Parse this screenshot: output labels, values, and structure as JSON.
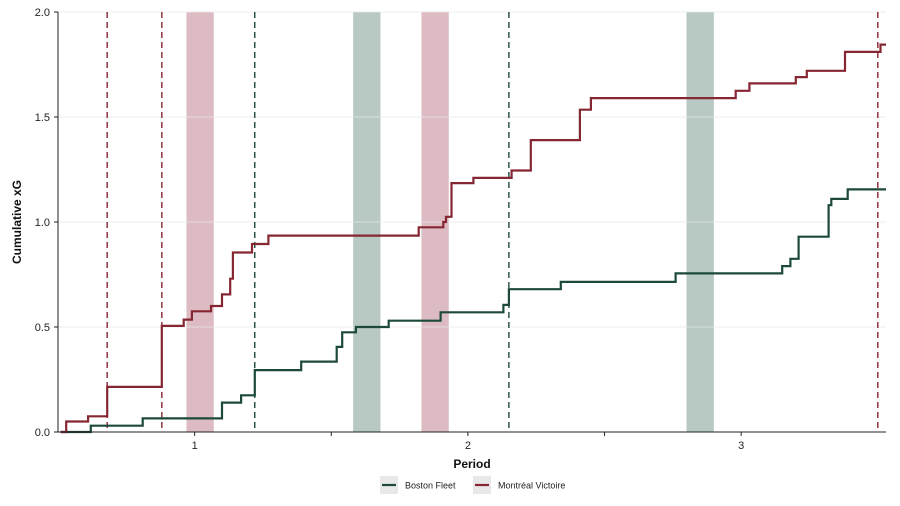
{
  "chart_data": {
    "type": "line",
    "title": "",
    "xlabel": "Period",
    "ylabel": "Cumulative xG",
    "xlim": [
      0.5,
      3.53
    ],
    "ylim": [
      0,
      2.0
    ],
    "x_ticks": [
      1,
      2,
      3
    ],
    "x_minor_ticks": [
      1.5,
      2.5
    ],
    "y_ticks": [
      "0.0",
      "0.5",
      "1.0",
      "1.5",
      "2.0"
    ],
    "grid": "horizontal",
    "legend_position": "bottom-center",
    "colors": {
      "boston": "#1d4a38",
      "montreal": "#862633",
      "boston_band": "#b7c9c2",
      "montreal_band": "#dcbcc2"
    },
    "series": [
      {
        "name": "Boston Fleet",
        "color": "#1d4a38",
        "x": [
          0.51,
          0.62,
          0.62,
          0.81,
          0.81,
          1.1,
          1.1,
          1.17,
          1.17,
          1.22,
          1.22,
          1.39,
          1.39,
          1.52,
          1.52,
          1.54,
          1.54,
          1.59,
          1.59,
          1.71,
          1.71,
          1.9,
          1.9,
          2.13,
          2.13,
          2.15,
          2.15,
          2.34,
          2.34,
          2.76,
          2.76,
          3.15,
          3.15,
          3.18,
          3.18,
          3.21,
          3.21,
          3.32,
          3.32,
          3.33,
          3.33,
          3.39,
          3.39,
          3.53
        ],
        "y": [
          0.0,
          0.0,
          0.03,
          0.03,
          0.065,
          0.065,
          0.14,
          0.14,
          0.175,
          0.175,
          0.295,
          0.295,
          0.335,
          0.335,
          0.405,
          0.405,
          0.475,
          0.475,
          0.5,
          0.5,
          0.53,
          0.53,
          0.57,
          0.57,
          0.605,
          0.605,
          0.68,
          0.68,
          0.715,
          0.715,
          0.755,
          0.755,
          0.79,
          0.79,
          0.825,
          0.825,
          0.93,
          0.93,
          1.08,
          1.08,
          1.11,
          1.11,
          1.155,
          1.155
        ]
      },
      {
        "name": "Montréal Victoire",
        "color": "#862633",
        "x": [
          0.51,
          0.53,
          0.53,
          0.61,
          0.61,
          0.68,
          0.68,
          0.88,
          0.88,
          0.96,
          0.96,
          0.99,
          0.99,
          1.06,
          1.06,
          1.1,
          1.1,
          1.13,
          1.13,
          1.14,
          1.14,
          1.21,
          1.21,
          1.27,
          1.27,
          1.82,
          1.82,
          1.91,
          1.91,
          1.92,
          1.92,
          1.94,
          1.94,
          2.02,
          2.02,
          2.16,
          2.16,
          2.23,
          2.23,
          2.41,
          2.41,
          2.45,
          2.45,
          2.98,
          2.98,
          3.03,
          3.03,
          3.2,
          3.2,
          3.24,
          3.24,
          3.38,
          3.38,
          3.51,
          3.51,
          3.53
        ],
        "y": [
          0.0,
          0.0,
          0.05,
          0.05,
          0.075,
          0.075,
          0.215,
          0.215,
          0.505,
          0.505,
          0.535,
          0.535,
          0.575,
          0.575,
          0.6,
          0.6,
          0.655,
          0.655,
          0.73,
          0.73,
          0.855,
          0.855,
          0.895,
          0.895,
          0.935,
          0.935,
          0.975,
          0.975,
          1.0,
          1.0,
          1.025,
          1.025,
          1.185,
          1.185,
          1.21,
          1.21,
          1.245,
          1.245,
          1.39,
          1.39,
          1.535,
          1.535,
          1.59,
          1.59,
          1.625,
          1.625,
          1.66,
          1.66,
          1.69,
          1.69,
          1.72,
          1.72,
          1.81,
          1.81,
          1.845,
          1.845
        ]
      }
    ],
    "goal_lines": [
      {
        "team": "Montréal Victoire",
        "x": 0.68
      },
      {
        "team": "Montréal Victoire",
        "x": 0.88
      },
      {
        "team": "Boston Fleet",
        "x": 1.22
      },
      {
        "team": "Boston Fleet",
        "x": 2.15
      },
      {
        "team": "Montréal Victoire",
        "x": 3.5
      }
    ],
    "penalty_bands": [
      {
        "team": "Montréal Victoire",
        "x_start": 0.97,
        "x_end": 1.07
      },
      {
        "team": "Boston Fleet",
        "x_start": 1.58,
        "x_end": 1.68
      },
      {
        "team": "Montréal Victoire",
        "x_start": 1.83,
        "x_end": 1.93
      },
      {
        "team": "Boston Fleet",
        "x_start": 2.8,
        "x_end": 2.9
      }
    ],
    "legend": [
      {
        "label": "Boston Fleet",
        "color": "#1d4a38"
      },
      {
        "label": "Montréal Victoire",
        "color": "#862633"
      }
    ]
  }
}
